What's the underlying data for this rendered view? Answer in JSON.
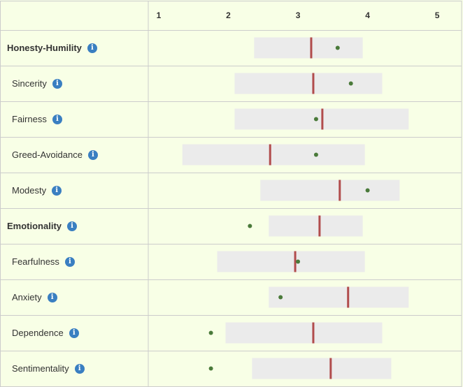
{
  "chart_data": {
    "type": "range-bar",
    "x_ticks": [
      1,
      2,
      3,
      4,
      5
    ],
    "xlim": [
      0.85,
      5.35
    ],
    "colors": {
      "range": "#ebebeb",
      "marker": "#b14c4c",
      "dot": "#4a7a3a",
      "grid": "#cccccc",
      "info": "#3a7fc1"
    },
    "icon": "info-icon",
    "rows": [
      {
        "label": "Honesty-Humility",
        "group": true,
        "range": [
          2.37,
          3.93
        ],
        "marker": 3.19,
        "dot": 3.57
      },
      {
        "label": "Sincerity",
        "group": false,
        "range": [
          2.09,
          4.21
        ],
        "marker": 3.22,
        "dot": 3.76
      },
      {
        "label": "Fairness",
        "group": false,
        "range": [
          2.09,
          4.59
        ],
        "marker": 3.35,
        "dot": 3.26
      },
      {
        "label": "Greed-Avoidance",
        "group": false,
        "range": [
          1.34,
          3.96
        ],
        "marker": 2.6,
        "dot": 3.26
      },
      {
        "label": "Modesty",
        "group": false,
        "range": [
          2.46,
          4.46
        ],
        "marker": 3.6,
        "dot": 4.0
      },
      {
        "label": "Emotionality",
        "group": true,
        "range": [
          2.58,
          3.93
        ],
        "marker": 3.31,
        "dot": 2.31
      },
      {
        "label": "Fearfulness",
        "group": false,
        "range": [
          1.84,
          3.96
        ],
        "marker": 2.96,
        "dot": 3.0
      },
      {
        "label": "Anxiety",
        "group": false,
        "range": [
          2.58,
          4.59
        ],
        "marker": 3.72,
        "dot": 2.75
      },
      {
        "label": "Dependence",
        "group": false,
        "range": [
          1.96,
          4.21
        ],
        "marker": 3.22,
        "dot": 1.75
      },
      {
        "label": "Sentimentality",
        "group": false,
        "range": [
          2.34,
          4.34
        ],
        "marker": 3.47,
        "dot": 1.75
      }
    ]
  }
}
